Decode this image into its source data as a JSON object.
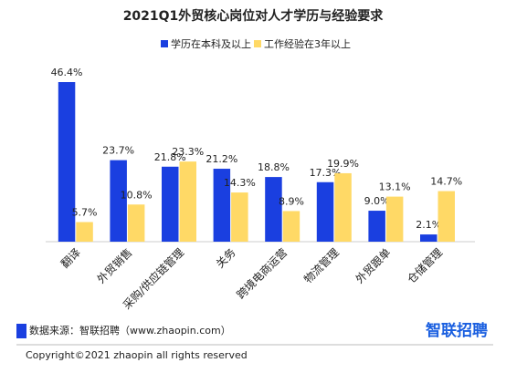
{
  "chart_data": {
    "type": "bar",
    "title": "2021Q1外贸核心岗位对人才学历与经验要求",
    "categories": [
      "翻译",
      "外贸销售",
      "采购/供应链管理",
      "关务",
      "跨境电商运营",
      "物流管理",
      "外贸跟单",
      "仓储管理"
    ],
    "series": [
      {
        "name": "学历在本科及以上",
        "color": "#1a3fe0",
        "values": [
          46.4,
          23.7,
          21.8,
          21.2,
          18.8,
          17.3,
          9.0,
          2.1
        ],
        "value_labels": [
          "46.4%",
          "23.7%",
          "21.8%",
          "21.2%",
          "18.8%",
          "17.3%",
          "9.0%",
          "2.1%"
        ]
      },
      {
        "name": "工作经验在3年以上",
        "color": "#ffd966",
        "values": [
          5.7,
          10.8,
          23.3,
          14.3,
          8.9,
          19.9,
          13.1,
          14.7
        ],
        "value_labels": [
          "5.7%",
          "10.8%",
          "23.3%",
          "14.3%",
          "8.9%",
          "19.9%",
          "13.1%",
          "14.7%"
        ]
      }
    ],
    "source": "数据来源：智联招聘（www.zhaopin.com）",
    "logo": "智联招聘",
    "copyright": "Copyright©2021 zhaopin all rights reserved"
  }
}
